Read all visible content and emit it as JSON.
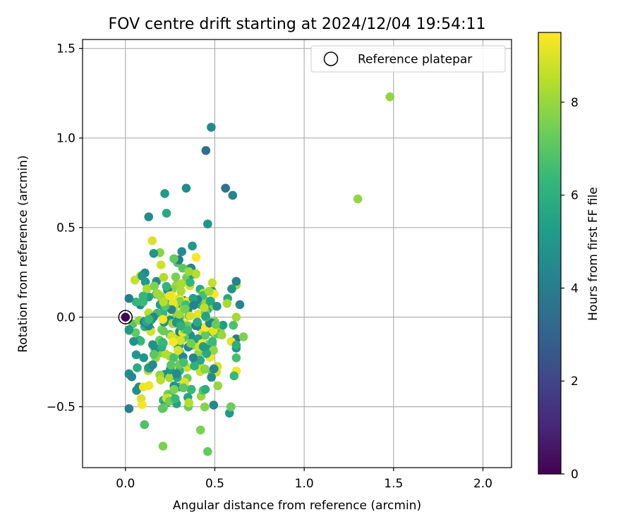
{
  "chart_data": {
    "type": "scatter",
    "title": "FOV centre drift starting at 2024/12/04 19:54:11",
    "xlabel": "Angular distance from reference (arcmin)",
    "ylabel": "Rotation from reference (arcmin)",
    "xlim": [
      -0.24,
      2.16
    ],
    "ylim": [
      -0.84,
      1.55
    ],
    "xticks": [
      0.0,
      0.5,
      1.0,
      1.5,
      2.0
    ],
    "xtick_labels": [
      "0.0",
      "0.5",
      "1.0",
      "1.5",
      "2.0"
    ],
    "yticks": [
      -0.5,
      0.0,
      0.5,
      1.0,
      1.5
    ],
    "ytick_labels": [
      "−0.5",
      "0.0",
      "0.5",
      "1.0",
      "1.5"
    ],
    "grid": true,
    "legend": {
      "label": "Reference platepar",
      "placement": "top-right"
    },
    "reference_point": {
      "x": 0.0,
      "y": 0.0,
      "hours": 0.0
    },
    "colorbar": {
      "label": "Hours from first FF file",
      "range": [
        0,
        9.5
      ],
      "ticks": [
        0,
        2,
        4,
        6,
        8
      ],
      "tick_labels": [
        "0",
        "2",
        "4",
        "6",
        "8"
      ],
      "colormap": [
        "#440154",
        "#482878",
        "#3e4989",
        "#31688e",
        "#26828e",
        "#1f9e89",
        "#35b779",
        "#6ece58",
        "#b5de2b",
        "#fde725"
      ]
    },
    "outliers": [
      {
        "x": 1.48,
        "y": 1.23,
        "hours": 7.9
      },
      {
        "x": 1.3,
        "y": 0.66,
        "hours": 7.9
      },
      {
        "x": 0.48,
        "y": 1.06,
        "hours": 4.5
      },
      {
        "x": 0.45,
        "y": 0.93,
        "hours": 3.5
      },
      {
        "x": 0.56,
        "y": 0.72,
        "hours": 3.6
      },
      {
        "x": 0.6,
        "y": 0.68,
        "hours": 4.3
      },
      {
        "x": 0.34,
        "y": 0.72,
        "hours": 4.6
      },
      {
        "x": 0.22,
        "y": 0.69,
        "hours": 5.2
      },
      {
        "x": 0.46,
        "y": 0.52,
        "hours": 4.9
      },
      {
        "x": 0.23,
        "y": 0.58,
        "hours": 5.7
      },
      {
        "x": 0.13,
        "y": 0.56,
        "hours": 4.6
      },
      {
        "x": 0.21,
        "y": -0.72,
        "hours": 7.6
      },
      {
        "x": 0.46,
        "y": -0.75,
        "hours": 7.2
      },
      {
        "x": 0.42,
        "y": -0.63,
        "hours": 7.6
      },
      {
        "x": 0.1,
        "y": -0.39,
        "hours": 9.3
      },
      {
        "x": 0.59,
        "y": -0.5,
        "hours": 7.3
      },
      {
        "x": 0.62,
        "y": 0.2,
        "hours": 4.3
      },
      {
        "x": 0.64,
        "y": 0.07,
        "hours": 4.4
      },
      {
        "x": 0.66,
        "y": -0.11,
        "hours": 7.6
      },
      {
        "x": 0.06,
        "y": -0.21,
        "hours": 5.0
      },
      {
        "x": 0.02,
        "y": -0.07,
        "hours": 5.1
      }
    ],
    "cluster": {
      "count": 300,
      "x_range": [
        0.02,
        0.62
      ],
      "y_range": [
        -0.6,
        0.45
      ],
      "hours_range": [
        4.0,
        9.5
      ]
    }
  }
}
